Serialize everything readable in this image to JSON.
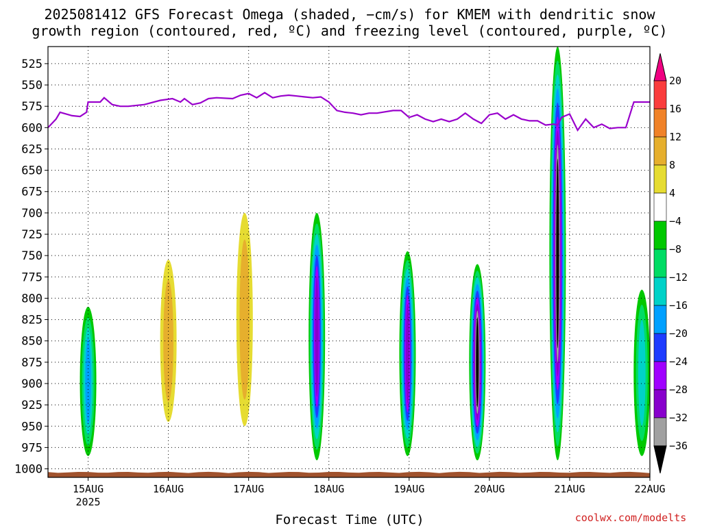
{
  "title_line_1": "2025081412 GFS Forecast Omega (shaded, −cm/s) for KMEM with dendritic snow",
  "title_line_2": "growth region (contoured, red, ºC) and freezing level (contoured, purple, ºC)",
  "credit": "coolwx.com/modelts",
  "chart_data": {
    "type": "heatmap",
    "xlabel": "Forecast Time (UTC)",
    "ylabel": "",
    "x_ticks": [
      "15AUG",
      "16AUG",
      "17AUG",
      "18AUG",
      "19AUG",
      "20AUG",
      "21AUG",
      "22AUG"
    ],
    "x_year_label": "2025",
    "xlim_days": [
      14.5,
      22.0
    ],
    "y_ticks": [
      525,
      550,
      575,
      600,
      625,
      650,
      675,
      700,
      725,
      750,
      775,
      800,
      825,
      850,
      875,
      900,
      925,
      950,
      975,
      1000
    ],
    "ylim_hPa": [
      505,
      1010
    ],
    "y_reversed": true,
    "grid": true,
    "colorbar": {
      "levels": [
        -36,
        -32,
        -28,
        -24,
        -20,
        -16,
        -12,
        -8,
        -4,
        4,
        8,
        12,
        16,
        20
      ],
      "tick_labels": [
        "20",
        "16",
        "12",
        "8",
        "4",
        "−4",
        "−8",
        "−12",
        "−16",
        "−20",
        "−24",
        "−28",
        "−32",
        "−36"
      ],
      "colors": [
        "#000000",
        "#a0a0a0",
        "#8800cc",
        "#a000ff",
        "#1e3cff",
        "#00a0ff",
        "#00d2c8",
        "#00dc64",
        "#00c800",
        "#ffffff",
        "#e6dc32",
        "#e6af2d",
        "#f08228",
        "#fa3c3c",
        "#f00082"
      ]
    },
    "freezing_level": {
      "color": "#9900cc",
      "x_days": [
        14.5,
        14.6,
        14.65,
        14.8,
        14.9,
        14.98,
        15.0,
        15.15,
        15.2,
        15.3,
        15.4,
        15.5,
        15.7,
        15.9,
        16.05,
        16.15,
        16.2,
        16.3,
        16.4,
        16.5,
        16.6,
        16.8,
        16.9,
        17.0,
        17.1,
        17.2,
        17.3,
        17.4,
        17.5,
        17.6,
        17.7,
        17.8,
        17.9,
        18.0,
        18.1,
        18.2,
        18.3,
        18.4,
        18.5,
        18.6,
        18.8,
        18.9,
        19.0,
        19.1,
        19.2,
        19.3,
        19.4,
        19.5,
        19.6,
        19.7,
        19.8,
        19.9,
        20.0,
        20.1,
        20.2,
        20.3,
        20.4,
        20.5,
        20.6,
        20.7,
        20.8,
        20.85,
        20.9,
        21.0,
        21.1,
        21.2,
        21.3,
        21.4,
        21.5,
        21.6,
        21.7,
        21.8,
        22.0
      ],
      "y_hPa": [
        600,
        590,
        582,
        586,
        587,
        582,
        570,
        570,
        565,
        573,
        575,
        575,
        573,
        568,
        566,
        570,
        566,
        573,
        571,
        566,
        565,
        566,
        562,
        560,
        565,
        559,
        565,
        563,
        562,
        563,
        564,
        565,
        564,
        570,
        580,
        582,
        583,
        585,
        583,
        583,
        580,
        580,
        588,
        585,
        590,
        593,
        590,
        593,
        590,
        583,
        590,
        595,
        585,
        583,
        590,
        585,
        590,
        592,
        592,
        597,
        596,
        597,
        588,
        584,
        603,
        590,
        600,
        596,
        601,
        600,
        600,
        570,
        570
      ]
    },
    "features": [
      {
        "x_day": 15.0,
        "p_top": 810,
        "p_bottom": 985,
        "omega_min": -16
      },
      {
        "x_day": 16.0,
        "p_top": 755,
        "p_bottom": 945,
        "omega_min": 8
      },
      {
        "x_day": 16.95,
        "p_top": 700,
        "p_bottom": 950,
        "omega_min": 8
      },
      {
        "x_day": 17.85,
        "p_top": 700,
        "p_bottom": 990,
        "omega_min": -28
      },
      {
        "x_day": 18.98,
        "p_top": 745,
        "p_bottom": 985,
        "omega_min": -28
      },
      {
        "x_day": 19.85,
        "p_top": 760,
        "p_bottom": 990,
        "omega_min": -36
      },
      {
        "x_day": 20.85,
        "p_top": 505,
        "p_bottom": 990,
        "omega_min": -36
      },
      {
        "x_day": 21.9,
        "p_top": 790,
        "p_bottom": 985,
        "omega_min": -12
      }
    ]
  }
}
